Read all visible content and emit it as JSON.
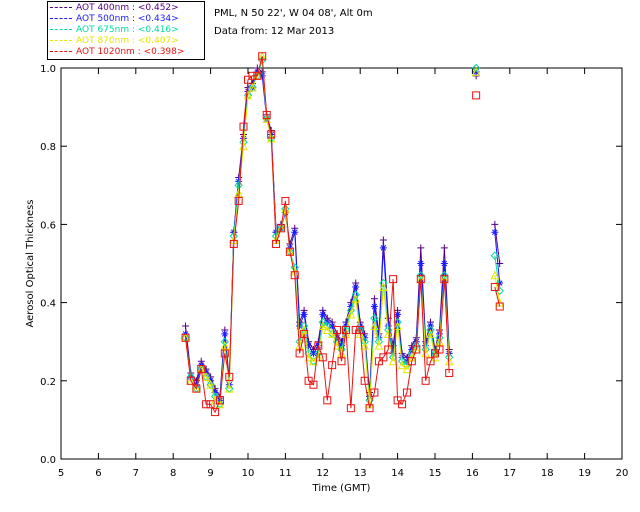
{
  "legend": [
    {
      "label": "AOT  400nm : <0.452>",
      "color": "#550088"
    },
    {
      "label": "AOT  500nm : <0.434>",
      "color": "#1a1aff"
    },
    {
      "label": "AOT  675nm : <0.416>",
      "color": "#00dd99"
    },
    {
      "label": "AOT  870nm : <0.407>",
      "color": "#e6e600"
    },
    {
      "label": "AOT 1020nm : <0.398>",
      "color": "#ee1111"
    }
  ],
  "info": {
    "line1": "PML, N 50 22', W 04 08', Alt 0m",
    "line2": "Data from: 12 Mar 2013"
  },
  "chart_data": {
    "type": "line",
    "xlabel": "Time (GMT)",
    "ylabel": "Aerosol Optical Thickness",
    "xlim": [
      5,
      20
    ],
    "ylim": [
      0,
      1.0
    ],
    "xticks": [
      5,
      6,
      7,
      8,
      9,
      10,
      11,
      12,
      13,
      14,
      15,
      16,
      17,
      18,
      19,
      20
    ],
    "yticks": [
      "0.0",
      "0.2",
      "0.4",
      "0.6",
      "0.8",
      "1.0"
    ],
    "yticks_values": [
      0.0,
      0.2,
      0.4,
      0.6,
      0.8,
      1.0
    ],
    "grid": false,
    "legend_position": "top-left",
    "x": [
      8.33,
      8.47,
      8.62,
      8.75,
      8.88,
      9.0,
      9.12,
      9.25,
      9.38,
      9.5,
      9.62,
      9.75,
      9.88,
      10.0,
      10.12,
      10.25,
      10.38,
      10.5,
      10.62,
      10.75,
      10.88,
      11.0,
      11.12,
      11.25,
      11.38,
      11.5,
      11.62,
      11.75,
      11.88,
      12.0,
      12.12,
      12.25,
      12.38,
      12.5,
      12.62,
      12.75,
      12.88,
      13.0,
      13.12,
      13.25,
      13.38,
      13.5,
      13.62,
      13.75,
      13.88,
      14.0,
      14.12,
      14.25,
      14.38,
      14.5,
      14.62,
      14.75,
      14.88,
      15.0,
      15.12,
      15.25,
      15.38,
      16.1,
      16.6,
      16.73
    ],
    "series": [
      {
        "name": "AOT 400nm",
        "values": [
          0.34,
          0.22,
          0.2,
          0.25,
          0.23,
          0.21,
          0.18,
          0.16,
          0.33,
          0.2,
          0.58,
          0.72,
          0.83,
          0.95,
          0.96,
          1.0,
          0.99,
          0.88,
          0.84,
          0.58,
          0.6,
          0.63,
          0.55,
          0.59,
          0.35,
          0.38,
          0.3,
          0.28,
          0.3,
          0.38,
          0.36,
          0.35,
          0.32,
          0.3,
          0.35,
          0.4,
          0.45,
          0.35,
          0.32,
          0.17,
          0.41,
          0.32,
          0.56,
          0.36,
          0.29,
          0.38,
          0.27,
          0.26,
          0.29,
          0.31,
          0.54,
          0.3,
          0.35,
          0.28,
          0.33,
          0.54,
          0.28,
          0.98,
          0.6,
          0.5
        ]
      },
      {
        "name": "AOT 500nm",
        "values": [
          0.32,
          0.21,
          0.19,
          0.24,
          0.22,
          0.2,
          0.17,
          0.15,
          0.32,
          0.19,
          0.58,
          0.71,
          0.82,
          0.94,
          0.95,
          0.99,
          0.98,
          0.87,
          0.83,
          0.58,
          0.59,
          0.63,
          0.54,
          0.58,
          0.34,
          0.37,
          0.29,
          0.27,
          0.29,
          0.37,
          0.35,
          0.34,
          0.31,
          0.29,
          0.34,
          0.39,
          0.44,
          0.34,
          0.31,
          0.16,
          0.39,
          0.31,
          0.54,
          0.34,
          0.27,
          0.37,
          0.26,
          0.25,
          0.28,
          0.3,
          0.5,
          0.29,
          0.34,
          0.27,
          0.32,
          0.5,
          0.27,
          0.99,
          0.58,
          0.45
        ]
      },
      {
        "name": "AOT 675nm",
        "values": [
          0.31,
          0.21,
          0.18,
          0.23,
          0.21,
          0.19,
          0.16,
          0.14,
          0.3,
          0.18,
          0.57,
          0.7,
          0.81,
          0.93,
          0.95,
          0.98,
          1.02,
          0.87,
          0.82,
          0.57,
          0.59,
          0.64,
          0.53,
          0.49,
          0.3,
          0.34,
          0.27,
          0.25,
          0.27,
          0.35,
          0.34,
          0.32,
          0.3,
          0.28,
          0.33,
          0.38,
          0.42,
          0.33,
          0.3,
          0.15,
          0.36,
          0.3,
          0.45,
          0.33,
          0.26,
          0.35,
          0.25,
          0.24,
          0.27,
          0.29,
          0.47,
          0.28,
          0.33,
          0.27,
          0.31,
          0.47,
          0.26,
          1.0,
          0.52,
          0.43
        ]
      },
      {
        "name": "AOT 870nm",
        "values": [
          0.31,
          0.2,
          0.18,
          0.23,
          0.21,
          0.19,
          0.15,
          0.14,
          0.29,
          0.18,
          0.56,
          0.68,
          0.8,
          0.93,
          0.95,
          0.98,
          1.03,
          0.87,
          0.82,
          0.56,
          0.59,
          0.64,
          0.53,
          0.48,
          0.29,
          0.33,
          0.26,
          0.25,
          0.26,
          0.34,
          0.33,
          0.32,
          0.29,
          0.27,
          0.32,
          0.37,
          0.41,
          0.32,
          0.29,
          0.14,
          0.34,
          0.29,
          0.44,
          0.32,
          0.25,
          0.34,
          0.24,
          0.23,
          0.26,
          0.28,
          0.46,
          0.27,
          0.32,
          0.26,
          0.3,
          0.46,
          0.25,
          0.99,
          0.47,
          0.4
        ]
      },
      {
        "name": "AOT 1020nm",
        "values": [
          0.31,
          0.2,
          0.18,
          0.23,
          0.14,
          0.14,
          0.12,
          0.15,
          0.27,
          0.21,
          0.55,
          0.66,
          0.85,
          0.97,
          0.98,
          0.98,
          1.03,
          0.88,
          0.83,
          0.55,
          0.59,
          0.66,
          0.53,
          0.47,
          0.27,
          0.32,
          0.2,
          0.19,
          0.29,
          0.26,
          0.15,
          0.24,
          0.33,
          0.25,
          0.33,
          0.13,
          0.33,
          0.33,
          0.2,
          0.13,
          0.17,
          0.25,
          0.26,
          0.28,
          0.46,
          0.15,
          0.14,
          0.17,
          0.25,
          0.28,
          0.46,
          0.2,
          0.25,
          0.27,
          0.28,
          0.46,
          0.22,
          0.93,
          0.44,
          0.39
        ]
      }
    ]
  }
}
